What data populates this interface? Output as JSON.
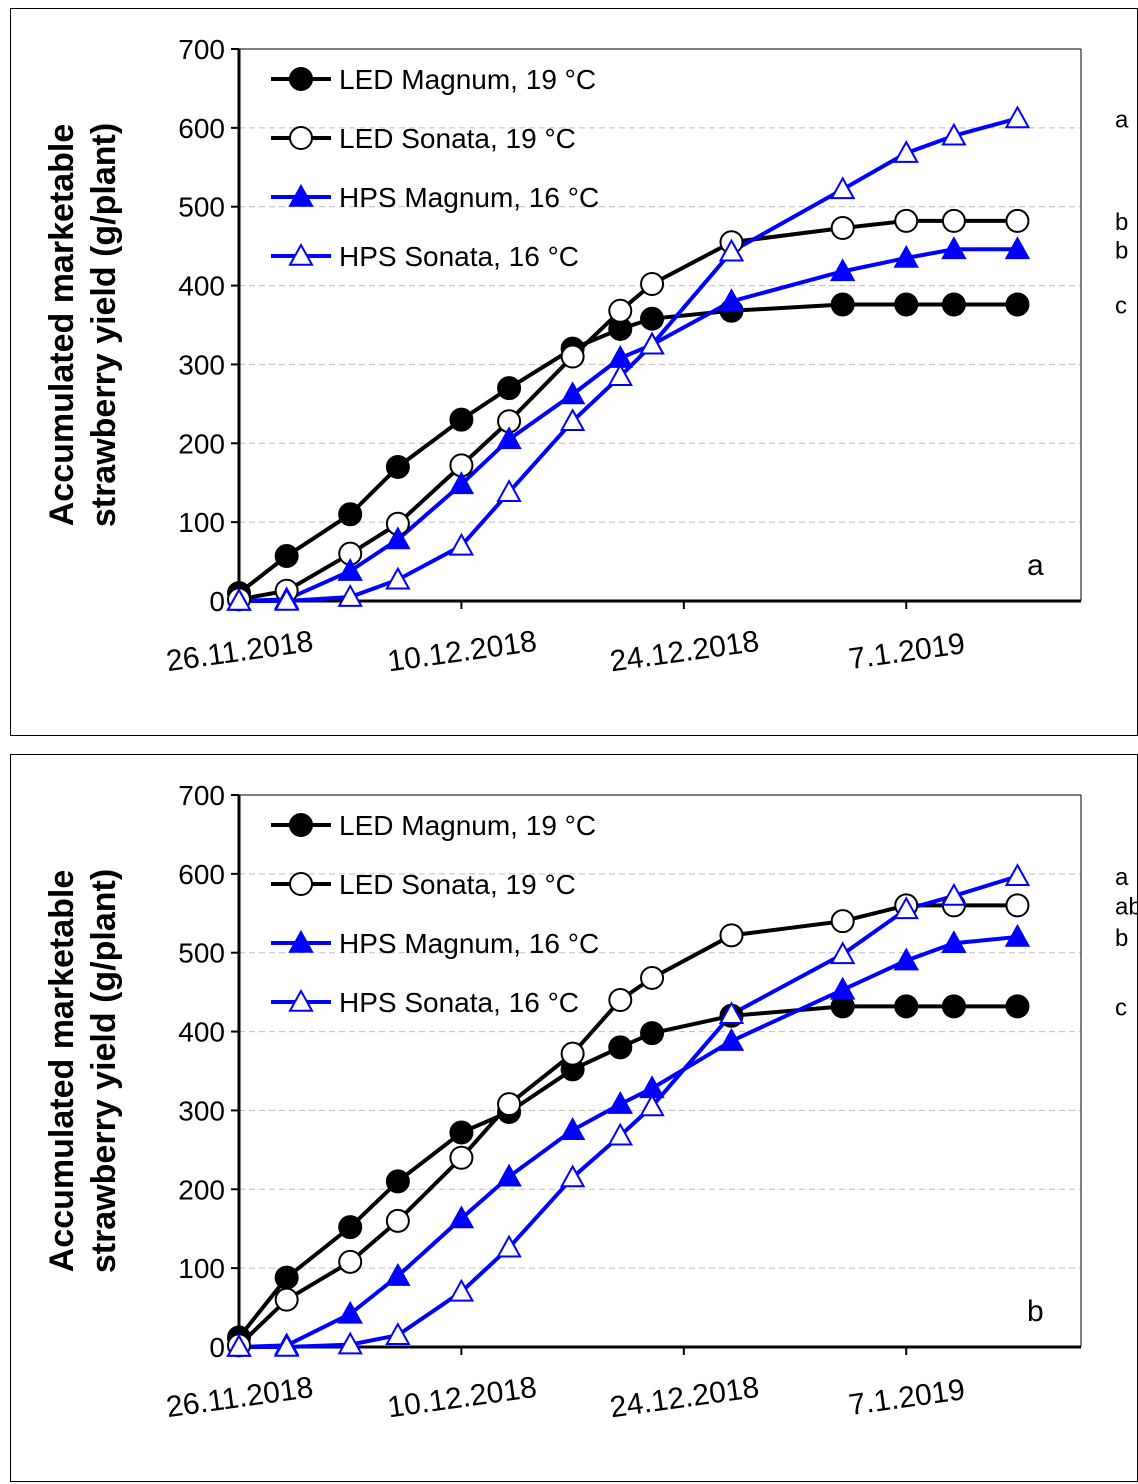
{
  "chart_data": [
    {
      "type": "line",
      "panel_label": "a",
      "ylabel": "Accumulated marketable strawberry yield (g/plant)",
      "xlabel": "",
      "ylim": [
        0,
        700
      ],
      "yticks": [
        0,
        100,
        200,
        300,
        400,
        500,
        600,
        700
      ],
      "xlim": [
        "2018-11-26",
        "2019-01-18"
      ],
      "xticks": [
        {
          "date": "2018-11-26",
          "label": "26.11.2018"
        },
        {
          "date": "2018-12-10",
          "label": "10.12.2018"
        },
        {
          "date": "2018-12-24",
          "label": "24.12.2018"
        },
        {
          "date": "2019-01-07",
          "label": "7.1.2019"
        }
      ],
      "grid": "horizontal dashed",
      "legend_position": "top-left",
      "x": [
        "2018-11-26",
        "2018-11-29",
        "2018-12-03",
        "2018-12-06",
        "2018-12-10",
        "2018-12-13",
        "2018-12-17",
        "2018-12-20",
        "2018-12-22",
        "2018-12-27",
        "2019-01-03",
        "2019-01-07",
        "2019-01-10",
        "2019-01-14"
      ],
      "series": [
        {
          "name": "LED Magnum, 19 °C",
          "color": "#000000",
          "marker": "filled-circle",
          "letter": "c",
          "values": [
            10,
            57,
            110,
            170,
            230,
            270,
            320,
            345,
            358,
            368,
            376,
            376,
            376,
            376
          ]
        },
        {
          "name": "LED Sonata, 19 °C",
          "color": "#000000",
          "marker": "open-circle",
          "letter": "b",
          "values": [
            2,
            13,
            60,
            98,
            172,
            228,
            310,
            368,
            402,
            455,
            473,
            482,
            482,
            482
          ]
        },
        {
          "name": "HPS Magnum, 16 °C",
          "color": "#0000ff",
          "marker": "filled-triangle",
          "letter": "b",
          "values": [
            0,
            2,
            38,
            78,
            148,
            205,
            262,
            308,
            325,
            380,
            418,
            435,
            446,
            446
          ]
        },
        {
          "name": "HPS Sonata, 16 °C",
          "color": "#0000ff",
          "marker": "open-triangle",
          "letter": "a",
          "values": [
            0,
            0,
            5,
            27,
            70,
            138,
            228,
            285,
            325,
            443,
            522,
            568,
            590,
            612
          ]
        }
      ]
    },
    {
      "type": "line",
      "panel_label": "b",
      "ylabel": "Accumulated marketable strawberry yield (g/plant)",
      "xlabel": "",
      "ylim": [
        0,
        700
      ],
      "yticks": [
        0,
        100,
        200,
        300,
        400,
        500,
        600,
        700
      ],
      "xlim": [
        "2018-11-26",
        "2019-01-18"
      ],
      "xticks": [
        {
          "date": "2018-11-26",
          "label": "26.11.2018"
        },
        {
          "date": "2018-12-10",
          "label": "10.12.2018"
        },
        {
          "date": "2018-12-24",
          "label": "24.12.2018"
        },
        {
          "date": "2019-01-07",
          "label": "7.1.2019"
        }
      ],
      "grid": "horizontal dashed",
      "legend_position": "top-left",
      "x": [
        "2018-11-26",
        "2018-11-29",
        "2018-12-03",
        "2018-12-06",
        "2018-12-10",
        "2018-12-13",
        "2018-12-17",
        "2018-12-20",
        "2018-12-22",
        "2018-12-27",
        "2019-01-03",
        "2019-01-07",
        "2019-01-10",
        "2019-01-14"
      ],
      "series": [
        {
          "name": "LED Magnum, 19 °C",
          "color": "#000000",
          "marker": "filled-circle",
          "letter": "c",
          "values": [
            12,
            88,
            152,
            210,
            272,
            298,
            352,
            380,
            398,
            420,
            432,
            432,
            432,
            432
          ]
        },
        {
          "name": "LED Sonata, 19 °C",
          "color": "#000000",
          "marker": "open-circle",
          "letter": "ab",
          "values": [
            2,
            60,
            108,
            160,
            240,
            308,
            372,
            440,
            468,
            522,
            540,
            560,
            560,
            560
          ]
        },
        {
          "name": "HPS Magnum, 16 °C",
          "color": "#0000ff",
          "marker": "filled-triangle",
          "letter": "b",
          "values": [
            0,
            2,
            42,
            90,
            163,
            216,
            275,
            308,
            328,
            388,
            453,
            490,
            512,
            520
          ]
        },
        {
          "name": "HPS Sonata, 16 °C",
          "color": "#0000ff",
          "marker": "open-triangle",
          "letter": "a",
          "values": [
            0,
            0,
            3,
            15,
            70,
            126,
            215,
            268,
            305,
            422,
            498,
            555,
            572,
            597
          ]
        }
      ]
    }
  ]
}
